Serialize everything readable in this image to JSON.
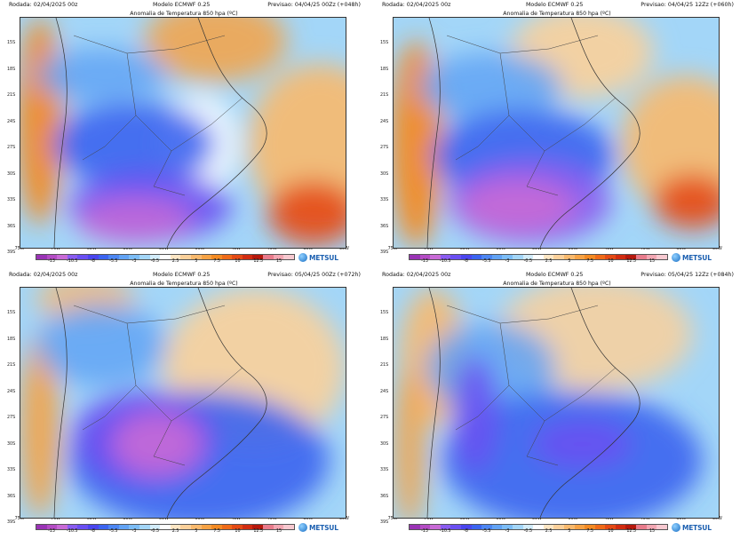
{
  "brand": {
    "name": "METSUL"
  },
  "lat_labels": [
    "15S",
    "18S",
    "21S",
    "24S",
    "27S",
    "30S",
    "33S",
    "36S",
    "39S"
  ],
  "lon_labels": [
    "75W",
    "70W",
    "65W",
    "60W",
    "55W",
    "50W",
    "45W",
    "40W",
    "35W",
    "30W"
  ],
  "colorbar": {
    "ticks": [
      "-13",
      "-10.5",
      "-8",
      "-5.5",
      "-3",
      "-0.5",
      "2.5",
      "5",
      "7.5",
      "10",
      "12.5",
      "15"
    ],
    "colors": [
      "#9a33b5",
      "#b44cc4",
      "#c86ad6",
      "#8a5cf0",
      "#6a4ff2",
      "#4a46ee",
      "#3b64f0",
      "#4c86f2",
      "#62a3f4",
      "#7cbdf6",
      "#a3d6f8",
      "#d2ecfa",
      "#ffffff",
      "#fde6c4",
      "#fbd09a",
      "#f8b96d",
      "#f6a244",
      "#f38a22",
      "#ef6a18",
      "#e44a14",
      "#d12c10",
      "#b6180c",
      "#e87b8b",
      "#f2a6b2",
      "#f7c9d0"
    ]
  },
  "panels": [
    {
      "rodada": "Rodada: 02/04/2025 00z",
      "modelo": "Modelo ECMWF 0.25",
      "previsao": "Previsao: 04/04/25 00Zz (+048h)",
      "title": "Anomalia de Temperatura 850 hpa (ºC)"
    },
    {
      "rodada": "Rodada: 02/04/2025 00z",
      "modelo": "Modelo ECMWF 0.25",
      "previsao": "Previsao: 04/04/25 12Zz (+060h)",
      "title": "Anomalia de Temperatura 850 hpa (ºC)"
    },
    {
      "rodada": "Rodada: 02/04/2025 00z",
      "modelo": "Modelo ECMWF 0.25",
      "previsao": "Previsao: 05/04/25 00Zz (+072h)",
      "title": "Anomalia de Temperatura 850 hpa (ºC)"
    },
    {
      "rodada": "Rodada: 02/04/2025 00z",
      "modelo": "Modelo ECMWF 0.25",
      "previsao": "Previsao: 05/04/25 12Zz (+084h)",
      "title": "Anomalia de Temperatura 850 hpa (ºC)"
    }
  ]
}
